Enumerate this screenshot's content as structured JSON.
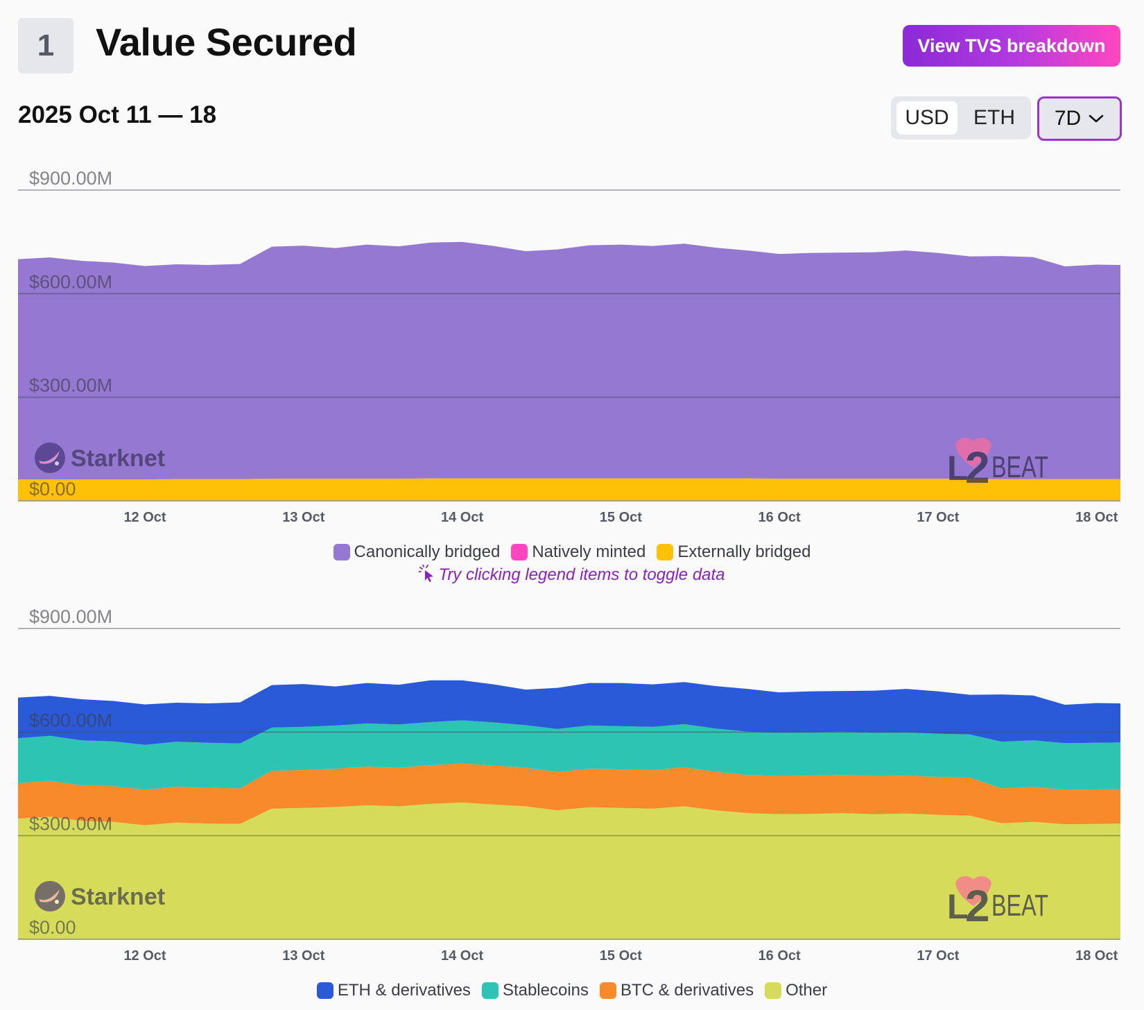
{
  "section": {
    "number": "1",
    "title": "Value Secured"
  },
  "header": {
    "breakdown_button": "View TVS breakdown",
    "date_range": "2025 Oct 11 — 18",
    "units": [
      {
        "label": "USD",
        "active": true
      },
      {
        "label": "ETH",
        "active": false
      }
    ],
    "range": "7D"
  },
  "watermark": {
    "project": "Starknet",
    "brand_l": "L",
    "brand_2": "2",
    "brand_rest": "BEAT"
  },
  "hint": "Try clicking legend items to toggle data",
  "chart_data": [
    {
      "type": "area",
      "stacked": true,
      "ylim": [
        0,
        900
      ],
      "y_ticks": [
        {
          "value": 0,
          "label": "$0.00"
        },
        {
          "value": 300,
          "label": "$300.00M"
        },
        {
          "value": 600,
          "label": "$600.00M"
        },
        {
          "value": 900,
          "label": "$900.00M"
        }
      ],
      "x_domain": [
        11.2,
        18.15
      ],
      "x_ticks": [
        {
          "value": 12,
          "label": "12 Oct"
        },
        {
          "value": 13,
          "label": "13 Oct"
        },
        {
          "value": 14,
          "label": "14 Oct"
        },
        {
          "value": 15,
          "label": "15 Oct"
        },
        {
          "value": 16,
          "label": "16 Oct"
        },
        {
          "value": 17,
          "label": "17 Oct"
        },
        {
          "value": 18,
          "label": "18 Oct"
        }
      ],
      "x": [
        11.2,
        11.4,
        11.6,
        11.8,
        12.0,
        12.2,
        12.4,
        12.6,
        12.8,
        13.0,
        13.2,
        13.4,
        13.6,
        13.8,
        14.0,
        14.2,
        14.4,
        14.6,
        14.8,
        15.0,
        15.2,
        15.4,
        15.6,
        15.8,
        16.0,
        16.2,
        16.4,
        16.6,
        16.8,
        17.0,
        17.2,
        17.4,
        17.6,
        17.8,
        18.0,
        18.15
      ],
      "series": [
        {
          "name": "Externally bridged",
          "color": "#ffc107",
          "values": [
            62,
            62,
            62,
            62,
            62,
            63,
            63,
            63,
            64,
            64,
            64,
            64,
            64,
            65,
            65,
            65,
            65,
            65,
            65,
            65,
            65,
            65,
            65,
            65,
            64,
            64,
            64,
            64,
            64,
            64,
            64,
            63,
            63,
            63,
            63,
            63
          ]
        },
        {
          "name": "Natively minted",
          "color": "#ff46c0",
          "values": [
            0,
            0,
            0,
            0,
            0,
            0,
            0,
            0,
            0,
            0,
            0,
            0,
            0,
            0,
            0,
            0,
            0,
            0,
            0,
            0,
            0,
            0,
            0,
            0,
            0,
            0,
            0,
            0,
            0,
            0,
            0,
            0,
            0,
            0,
            0,
            0
          ]
        },
        {
          "name": "Canonically bridged",
          "color": "#9578d2",
          "values": [
            638,
            643,
            633,
            628,
            618,
            622,
            620,
            623,
            672,
            675,
            668,
            678,
            673,
            683,
            685,
            673,
            658,
            663,
            675,
            677,
            673,
            680,
            668,
            660,
            651,
            654,
            655,
            656,
            661,
            654,
            644,
            646,
            643,
            616,
            621,
            620
          ]
        }
      ],
      "legend": [
        "Canonically bridged",
        "Natively minted",
        "Externally bridged"
      ]
    },
    {
      "type": "area",
      "stacked": true,
      "ylim": [
        0,
        900
      ],
      "y_ticks": [
        {
          "value": 0,
          "label": "$0.00"
        },
        {
          "value": 300,
          "label": "$300.00M"
        },
        {
          "value": 600,
          "label": "$600.00M"
        },
        {
          "value": 900,
          "label": "$900.00M"
        }
      ],
      "x_domain": [
        11.2,
        18.15
      ],
      "x_ticks": [
        {
          "value": 12,
          "label": "12 Oct"
        },
        {
          "value": 13,
          "label": "13 Oct"
        },
        {
          "value": 14,
          "label": "14 Oct"
        },
        {
          "value": 15,
          "label": "15 Oct"
        },
        {
          "value": 16,
          "label": "16 Oct"
        },
        {
          "value": 17,
          "label": "17 Oct"
        },
        {
          "value": 18,
          "label": "18 Oct"
        }
      ],
      "x": [
        11.2,
        11.4,
        11.6,
        11.8,
        12.0,
        12.2,
        12.4,
        12.6,
        12.8,
        13.0,
        13.2,
        13.4,
        13.6,
        13.8,
        14.0,
        14.2,
        14.4,
        14.6,
        14.8,
        15.0,
        15.2,
        15.4,
        15.6,
        15.8,
        16.0,
        16.2,
        16.4,
        16.6,
        16.8,
        17.0,
        17.2,
        17.4,
        17.6,
        17.8,
        18.0,
        18.15
      ],
      "series": [
        {
          "name": "Other",
          "color": "#d6dc5a",
          "values": [
            349,
            355,
            343,
            340,
            330,
            338,
            335,
            334,
            378,
            380,
            383,
            388,
            385,
            392,
            396,
            390,
            385,
            373,
            382,
            380,
            378,
            385,
            373,
            365,
            362,
            363,
            365,
            362,
            364,
            360,
            358,
            336,
            340,
            333,
            334,
            335
          ]
        },
        {
          "name": "BTC & derivatives",
          "color": "#f98a2b",
          "values": [
            103,
            104,
            103,
            103,
            103,
            104,
            104,
            103,
            110,
            110,
            111,
            112,
            112,
            112,
            113,
            113,
            112,
            111,
            112,
            112,
            112,
            113,
            112,
            111,
            111,
            111,
            111,
            111,
            110,
            110,
            110,
            101,
            101,
            100,
            100,
            100
          ]
        },
        {
          "name": "Stablecoins",
          "color": "#2ec4b4",
          "values": [
            130,
            130,
            130,
            130,
            130,
            130,
            130,
            130,
            125,
            125,
            125,
            125,
            125,
            125,
            125,
            125,
            123,
            125,
            125,
            125,
            125,
            125,
            125,
            125,
            125,
            125,
            125,
            125,
            125,
            125,
            125,
            135,
            135,
            135,
            135,
            135
          ]
        },
        {
          "name": "ETH & derivatives",
          "color": "#2b5ad8",
          "values": [
            118,
            116,
            119,
            117,
            117,
            113,
            114,
            119,
            123,
            124,
            113,
            117,
            115,
            121,
            116,
            110,
            103,
            119,
            123,
            125,
            123,
            122,
            123,
            124,
            117,
            119,
            118,
            122,
            126,
            123,
            115,
            137,
            130,
            111,
            115,
            113
          ]
        }
      ],
      "legend": [
        "ETH & derivatives",
        "Stablecoins",
        "BTC & derivatives",
        "Other"
      ]
    }
  ]
}
